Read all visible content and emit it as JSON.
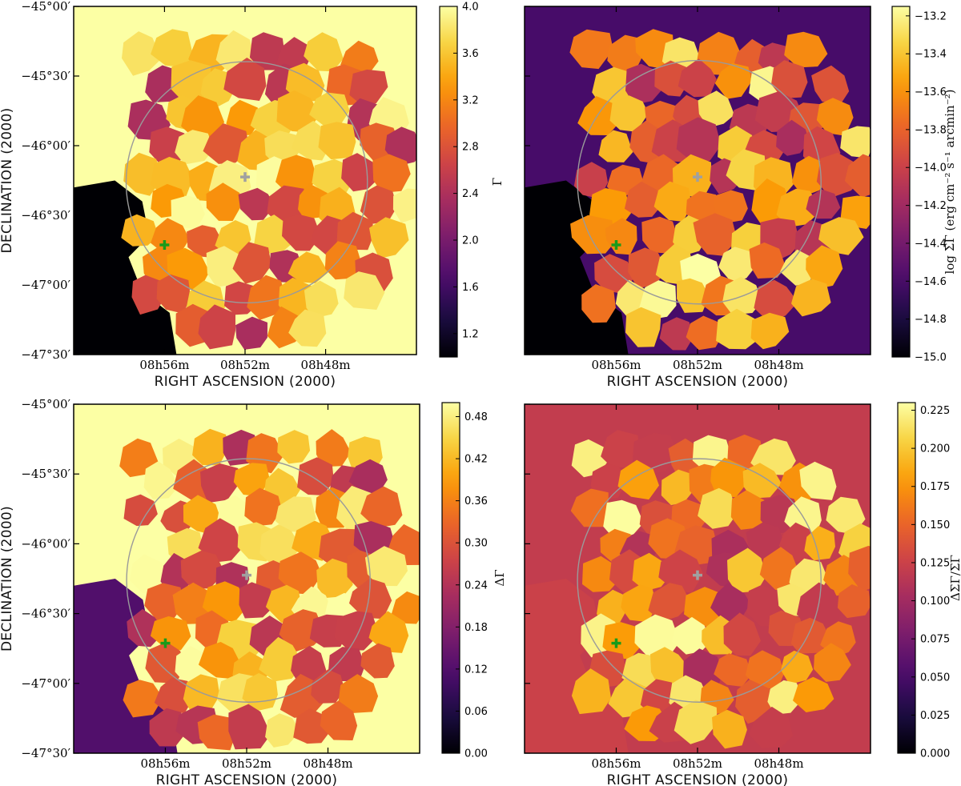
{
  "figure": {
    "description_title": ""
  },
  "chart_data": [
    {
      "type": "heatmap",
      "panel": "top-left",
      "colormap": "inferno",
      "xlabel": "RIGHT ASCENSION (2000)",
      "ylabel": "DECLINATION (2000)",
      "x_ticks": [
        "08h56m",
        "08h52m",
        "08h48m"
      ],
      "y_ticks": [
        "−45°00′",
        "−45°30′",
        "−46°00′",
        "−46°30′",
        "−47°00′",
        "−47°30′"
      ],
      "colorbar_label": "Γ",
      "colorbar_range": [
        1.0,
        4.0
      ],
      "colorbar_ticks": [
        "1.2",
        "1.6",
        "2.0",
        "2.4",
        "2.8",
        "3.2",
        "3.6",
        "4.0"
      ],
      "background_value": 4.0,
      "left_region_value": 1.0,
      "seed": 11
    },
    {
      "type": "heatmap",
      "panel": "top-right",
      "colormap": "inferno",
      "xlabel": "RIGHT ASCENSION (2000)",
      "ylabel": "",
      "x_ticks": [
        "08h56m",
        "08h52m",
        "08h48m"
      ],
      "y_ticks": [],
      "colorbar_label": "log ΣΓ (erg cm⁻² s⁻¹ arcmin⁻²)",
      "colorbar_range": [
        -15.0,
        -13.15
      ],
      "colorbar_ticks": [
        "−15.0",
        "−14.8",
        "−14.6",
        "−14.4",
        "−14.2",
        "−14.0",
        "−13.8",
        "−13.6",
        "−13.4",
        "−13.2"
      ],
      "background_value": -14.6,
      "left_region_value": -15.0,
      "seed": 23
    },
    {
      "type": "heatmap",
      "panel": "bottom-left",
      "colormap": "inferno",
      "xlabel": "RIGHT ASCENSION (2000)",
      "ylabel": "DECLINATION (2000)",
      "x_ticks": [
        "08h56m",
        "08h52m",
        "08h48m"
      ],
      "y_ticks": [
        "−45°00′",
        "−45°30′",
        "−46°00′",
        "−46°30′",
        "−47°00′",
        "−47°30′"
      ],
      "colorbar_label": "ΔΓ",
      "colorbar_range": [
        0.0,
        0.5
      ],
      "colorbar_ticks": [
        "0.00",
        "0.06",
        "0.12",
        "0.18",
        "0.24",
        "0.30",
        "0.36",
        "0.42",
        "0.48"
      ],
      "background_value": 0.5,
      "left_region_value": 0.12,
      "seed": 37
    },
    {
      "type": "heatmap",
      "panel": "bottom-right",
      "colormap": "inferno",
      "xlabel": "RIGHT ASCENSION (2000)",
      "ylabel": "",
      "x_ticks": [
        "08h56m",
        "08h52m",
        "08h48m"
      ],
      "y_ticks": [],
      "colorbar_label": "ΔΣΓ/ΣΓ",
      "colorbar_range": [
        0.0,
        0.23
      ],
      "colorbar_ticks": [
        "0.000",
        "0.025",
        "0.050",
        "0.075",
        "0.100",
        "0.125",
        "0.150",
        "0.175",
        "0.200",
        "0.225"
      ],
      "background_value": 0.12,
      "left_region_value": 0.125,
      "seed": 53
    }
  ],
  "markers": [
    {
      "name": "gray-cross",
      "color": "#a0a0a0",
      "symbol": "+"
    },
    {
      "name": "green-cross",
      "color": "#1a9a1a",
      "symbol": "+"
    }
  ],
  "circle_color": "#9a9a9a"
}
